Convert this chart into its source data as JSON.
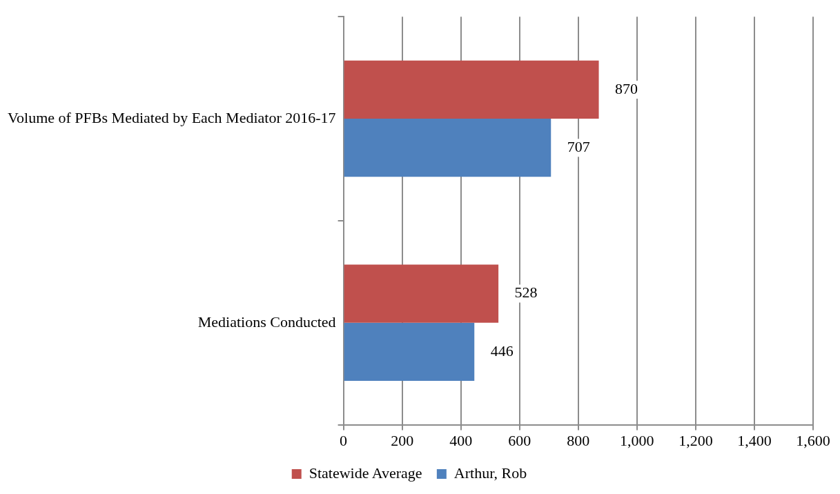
{
  "chart_data": {
    "type": "bar",
    "orientation": "horizontal",
    "categories": [
      "Volume of PFBs Mediated by Each Mediator 2016-17",
      "Mediations Conducted"
    ],
    "series": [
      {
        "name": "Statewide Average",
        "color": "#c0504d",
        "values": [
          870,
          528
        ]
      },
      {
        "name": "Arthur, Rob",
        "color": "#4f81bd",
        "values": [
          707,
          446
        ]
      }
    ],
    "xlim": [
      0,
      1600
    ],
    "xticks": [
      0,
      200,
      400,
      600,
      800,
      {
        "value": 1000,
        "label": "1,000"
      },
      {
        "value": 1200,
        "label": "1,200"
      },
      {
        "value": 1400,
        "label": "1,400"
      },
      {
        "value": 1600,
        "label": "1,600"
      }
    ],
    "grid": "x",
    "legend": "bottom",
    "data_labels": true
  }
}
